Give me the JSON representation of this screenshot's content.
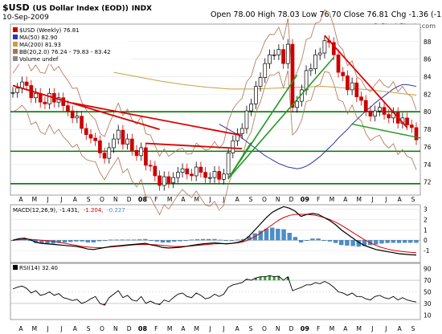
{
  "header": {
    "symbol": "$USD",
    "name": "(US Dollar Index (EOD))",
    "exchange": "INDX",
    "date": "10-Sep-2009",
    "ohlc": "Open 78.00  High 78.03  Low 76.70  Close 76.81  Chg -1.36 (-1.74%)",
    "chg_arrow": "▼",
    "watermark": "© StockCharts.com"
  },
  "colors": {
    "up": "#000000",
    "down": "#cc0000",
    "ma50": "#3333aa",
    "ma200": "#c8a040",
    "bb": "#b07050",
    "trend": "#dd0000",
    "support": "#007700",
    "fan": "#229922",
    "macd": "#000000",
    "signal": "#dd0000",
    "hist": "#4a8ec8",
    "rsi": "#000000"
  },
  "chart_data": [
    {
      "type": "line",
      "title": "$USD (Weekly) 76.81",
      "legend": [
        {
          "label": "$USD (Weekly) 76.81",
          "color": "#cc0000"
        },
        {
          "label": "MA(50) 82.90",
          "color": "#3333aa"
        },
        {
          "label": "MA(200) 81.93",
          "color": "#c8a040"
        },
        {
          "label": "BB(20,2.0) 76.24 - 79.83 - 83.42",
          "color": "#b07050"
        },
        {
          "label": "Volume undef",
          "color": "#888888"
        }
      ],
      "ylim": [
        70.5,
        90
      ],
      "yticks": [
        72,
        74,
        76,
        78,
        80,
        82,
        84,
        86,
        88
      ],
      "xticks": [
        "A",
        "M",
        "J",
        "J",
        "A",
        "S",
        "O",
        "N",
        "D",
        "08",
        "F",
        "M",
        "A",
        "M",
        "J",
        "J",
        "A",
        "S",
        "O",
        "N",
        "D",
        "09",
        "F",
        "M",
        "A",
        "M",
        "J",
        "J",
        "A",
        "S"
      ],
      "close": [
        82.2,
        82.7,
        83.4,
        83.0,
        81.6,
        82.1,
        81.1,
        80.9,
        82.1,
        81.1,
        81.6,
        80.7,
        80.1,
        79.3,
        79.5,
        78.1,
        77.4,
        77.0,
        76.7,
        75.3,
        74.7,
        75.9,
        76.9,
        77.9,
        76.3,
        76.9,
        75.6,
        75.0,
        75.9,
        73.9,
        73.8,
        72.7,
        71.6,
        72.6,
        71.9,
        72.5,
        73.1,
        73.5,
        72.9,
        72.7,
        73.7,
        73.1,
        72.5,
        72.5,
        73.2,
        72.3,
        72.9,
        75.3,
        76.7,
        77.5,
        78.1,
        80.1,
        80.9,
        82.9,
        83.9,
        85.5,
        86.5,
        86.5,
        87.1,
        85.5,
        87.7,
        80.5,
        81.2,
        82.5,
        84.7,
        84.9,
        86.5,
        86.7,
        88.1,
        87.9,
        86.5,
        84.5,
        84.1,
        82.5,
        83.3,
        81.7,
        81.3,
        80.1,
        79.5,
        80.1,
        80.5,
        79.7,
        79.3,
        79.9,
        78.7,
        79.3,
        78.5,
        78.2,
        76.8
      ],
      "ma50": [
        78.6,
        78.3,
        78.0,
        77.7,
        77.4,
        77.0,
        76.6,
        76.2,
        75.8,
        75.4,
        75.0,
        74.7,
        74.4,
        74.1,
        73.9,
        73.7,
        73.6,
        73.5,
        73.6,
        73.8,
        74.1,
        74.5,
        74.9,
        75.4,
        75.9,
        76.4,
        77.0,
        77.5,
        78.0,
        78.6,
        79.1,
        79.6,
        80.1,
        80.5,
        81.0,
        81.4,
        81.8,
        82.2,
        82.6,
        82.9,
        83.1,
        83.1,
        83.0,
        82.9
      ],
      "ma200": [
        84.5,
        84.0,
        83.5,
        83.1,
        82.8,
        82.6,
        82.6,
        82.7,
        82.8,
        82.9,
        82.7,
        82.5,
        82.2,
        81.9
      ],
      "lines": {
        "trend": [
          [
            0,
            83.0,
            32,
            78.0
          ],
          [
            13,
            81.0,
            50,
            77.3
          ],
          [
            29,
            76.4,
            50,
            75.8
          ],
          [
            68,
            88.7,
            86,
            78.2
          ]
        ],
        "fan": [
          [
            47,
            72.4,
            62,
            84.2
          ],
          [
            47,
            72.4,
            70,
            86.2
          ],
          [
            47,
            72.4,
            52,
            76.5
          ]
        ],
        "support": [
          80.0,
          75.5,
          71.8
        ],
        "green_short": [
          74,
          78.6,
          89,
          77.0
        ]
      }
    },
    {
      "type": "line",
      "title": "MACD(12,26,9) -1.431, -1.204, -0.227",
      "legend": [
        {
          "label": "MACD(12,26,9)",
          "color": "#000000"
        },
        {
          "label": "-1.431",
          "color": "#000000"
        },
        {
          "label": "-1.204",
          "color": "#dd0000"
        },
        {
          "label": "-0.227",
          "color": "#4a8ec8"
        }
      ],
      "ylim": [
        -2,
        3.2
      ],
      "yticks": [
        -1,
        0,
        1,
        2,
        3
      ],
      "macd": [
        0.0,
        0.15,
        0.2,
        0.05,
        -0.2,
        -0.3,
        -0.35,
        -0.4,
        -0.45,
        -0.5,
        -0.55,
        -0.6,
        -0.7,
        -0.85,
        -0.9,
        -0.8,
        -0.7,
        -0.6,
        -0.55,
        -0.5,
        -0.45,
        -0.4,
        -0.35,
        -0.3,
        -0.45,
        -0.55,
        -0.7,
        -0.75,
        -0.72,
        -0.68,
        -0.6,
        -0.5,
        -0.42,
        -0.35,
        -0.3,
        -0.25,
        -0.3,
        -0.35,
        -0.3,
        -0.2,
        -0.05,
        0.4,
        1.0,
        1.6,
        2.2,
        2.7,
        3.0,
        3.25,
        3.1,
        2.8,
        2.3,
        2.5,
        2.6,
        2.5,
        2.2,
        1.9,
        1.5,
        1.0,
        0.6,
        0.2,
        -0.2,
        -0.5,
        -0.7,
        -0.9,
        -1.0,
        -1.1,
        -1.2,
        -1.3,
        -1.35,
        -1.4,
        -1.43
      ],
      "signal": [
        0.0,
        0.05,
        0.1,
        0.1,
        0.05,
        0.0,
        -0.05,
        -0.1,
        -0.2,
        -0.3,
        -0.4,
        -0.5,
        -0.6,
        -0.65,
        -0.7,
        -0.72,
        -0.7,
        -0.65,
        -0.6,
        -0.55,
        -0.5,
        -0.45,
        -0.42,
        -0.4,
        -0.42,
        -0.45,
        -0.5,
        -0.55,
        -0.6,
        -0.6,
        -0.58,
        -0.55,
        -0.5,
        -0.45,
        -0.4,
        -0.35,
        -0.33,
        -0.32,
        -0.3,
        -0.25,
        -0.15,
        0.05,
        0.35,
        0.7,
        1.1,
        1.5,
        1.9,
        2.2,
        2.4,
        2.5,
        2.5,
        2.5,
        2.45,
        2.35,
        2.2,
        2.0,
        1.75,
        1.45,
        1.1,
        0.75,
        0.4,
        0.05,
        -0.25,
        -0.5,
        -0.7,
        -0.85,
        -0.97,
        -1.05,
        -1.12,
        -1.17,
        -1.2
      ]
    },
    {
      "type": "line",
      "title": "RSI(14) 32.40",
      "legend": [
        {
          "label": "RSI(14) 32.40",
          "color": "#000000"
        }
      ],
      "ylim": [
        5,
        95
      ],
      "yticks": [
        10,
        30,
        50,
        70,
        90
      ],
      "rsi": [
        55,
        58,
        60,
        56,
        48,
        52,
        44,
        46,
        50,
        44,
        47,
        40,
        38,
        35,
        37,
        30,
        33,
        38,
        42,
        30,
        27,
        40,
        46,
        52,
        40,
        44,
        36,
        34,
        42,
        30,
        34,
        30,
        28,
        36,
        33,
        40,
        46,
        48,
        42,
        40,
        48,
        44,
        38,
        40,
        46,
        42,
        46,
        58,
        62,
        64,
        66,
        72,
        70,
        74,
        76,
        76,
        78,
        76,
        77,
        70,
        76,
        52,
        55,
        58,
        62,
        62,
        66,
        64,
        68,
        64,
        58,
        50,
        48,
        44,
        48,
        42,
        42,
        38,
        36,
        42,
        44,
        40,
        38,
        42,
        36,
        40,
        36,
        34,
        32.4
      ]
    }
  ]
}
